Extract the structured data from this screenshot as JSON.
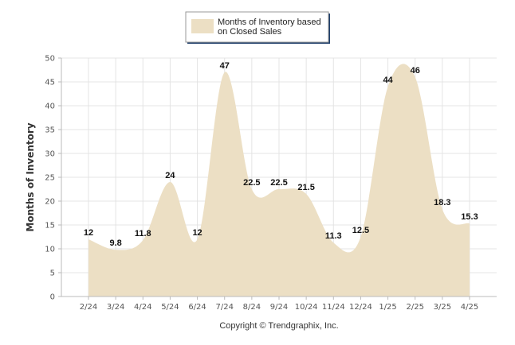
{
  "chart_data": {
    "type": "area",
    "title": "",
    "xlabel": "",
    "ylabel": "Months of Inventory",
    "categories": [
      "2/24",
      "3/24",
      "4/24",
      "5/24",
      "6/24",
      "7/24",
      "8/24",
      "9/24",
      "10/24",
      "11/24",
      "12/24",
      "1/25",
      "2/25",
      "3/25",
      "4/25"
    ],
    "series": [
      {
        "name": "Months of Inventory based on Closed Sales",
        "values": [
          12,
          9.8,
          11.8,
          24,
          12,
          47,
          22.5,
          22.5,
          21.5,
          11.3,
          12.5,
          44,
          46,
          18.3,
          15.3
        ],
        "labels": [
          "12",
          "9.8",
          "11.8",
          "24",
          "12",
          "47",
          "22.5",
          "22.5",
          "21.5",
          "11.3",
          "12.5",
          "44",
          "46",
          "18.3",
          "15.3"
        ]
      }
    ],
    "ylim": [
      0,
      50
    ],
    "yticks": [
      0,
      5,
      10,
      15,
      20,
      25,
      30,
      35,
      40,
      45,
      50
    ],
    "grid": true,
    "legend_position": "top-center",
    "colors": {
      "area_fill": "#ecdfc4",
      "grid": "#e4e4e4",
      "axis": "#bbbbbb"
    }
  },
  "legend": {
    "line1": "Months of Inventory based",
    "line2": "on Closed Sales"
  },
  "footer": {
    "copyright": "Copyright © Trendgraphix, Inc."
  }
}
